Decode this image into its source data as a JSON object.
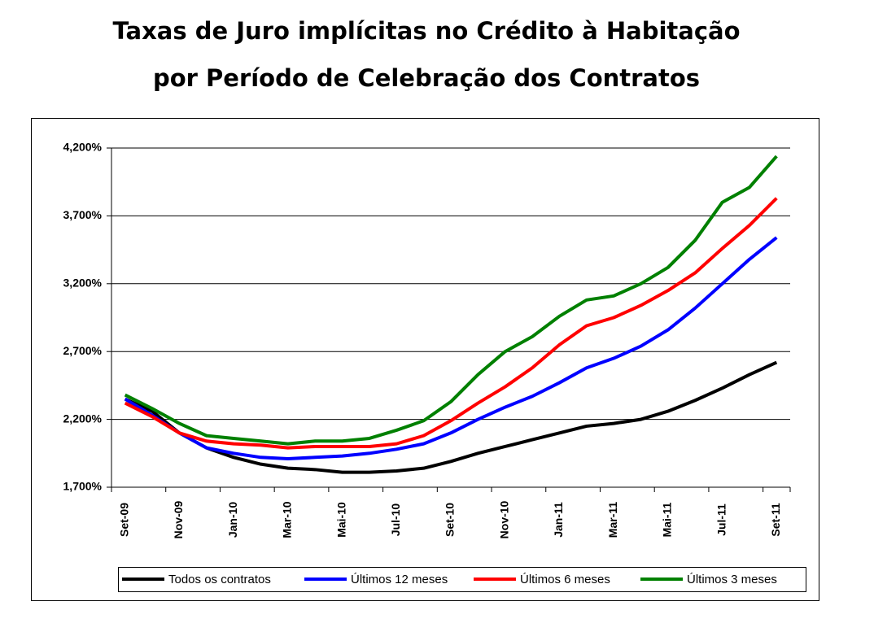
{
  "chart_data": {
    "type": "line",
    "title": "Taxas de Juro implícitas no Crédito à Habitação",
    "subtitle": "por Período de Celebração dos Contratos",
    "categories": [
      "Set-09",
      null,
      "Nov-09",
      null,
      "Jan-10",
      null,
      "Mar-10",
      null,
      "Mai-10",
      null,
      "Jul-10",
      null,
      "Set-10",
      null,
      "Nov-10",
      null,
      "Jan-11",
      null,
      "Mar-11",
      null,
      "Mai-11",
      null,
      "Jul-11",
      null,
      "Set-11"
    ],
    "series": [
      {
        "name": "Todos os contratos",
        "color": "#000000",
        "values": [
          2.35,
          2.26,
          2.1,
          1.99,
          1.92,
          1.87,
          1.84,
          1.83,
          1.81,
          1.81,
          1.82,
          1.84,
          1.89,
          1.95,
          2.0,
          2.05,
          2.1,
          2.15,
          2.17,
          2.2,
          2.26,
          2.34,
          2.43,
          2.53,
          2.62
        ]
      },
      {
        "name": "Últimos 12 meses",
        "color": "#0000ff",
        "values": [
          2.35,
          2.23,
          2.1,
          1.99,
          1.95,
          1.92,
          1.91,
          1.92,
          1.93,
          1.95,
          1.98,
          2.02,
          2.1,
          2.2,
          2.29,
          2.37,
          2.47,
          2.58,
          2.65,
          2.74,
          2.86,
          3.02,
          3.2,
          3.38,
          3.54
        ]
      },
      {
        "name": "Últimos 6 meses",
        "color": "#ff0000",
        "values": [
          2.32,
          2.22,
          2.1,
          2.04,
          2.02,
          2.01,
          1.99,
          2.0,
          2.0,
          2.0,
          2.02,
          2.08,
          2.19,
          2.32,
          2.44,
          2.58,
          2.75,
          2.89,
          2.95,
          3.04,
          3.15,
          3.28,
          3.46,
          3.63,
          3.83
        ]
      },
      {
        "name": "Últimos 3 meses",
        "color": "#008000",
        "values": [
          2.38,
          2.28,
          2.17,
          2.08,
          2.06,
          2.04,
          2.02,
          2.04,
          2.04,
          2.06,
          2.12,
          2.19,
          2.33,
          2.53,
          2.7,
          2.81,
          2.96,
          3.08,
          3.11,
          3.2,
          3.32,
          3.52,
          3.8,
          3.91,
          4.14
        ]
      }
    ],
    "ylim": [
      1.7,
      4.2
    ],
    "yticks": [
      {
        "value": 1.7,
        "label": "1,700%"
      },
      {
        "value": 2.2,
        "label": "2,200%"
      },
      {
        "value": 2.7,
        "label": "2,700%"
      },
      {
        "value": 3.2,
        "label": "3,200%"
      },
      {
        "value": 3.7,
        "label": "3,700%"
      },
      {
        "value": 4.2,
        "label": "4,200%"
      }
    ],
    "grid": true,
    "legend": "bottom"
  }
}
